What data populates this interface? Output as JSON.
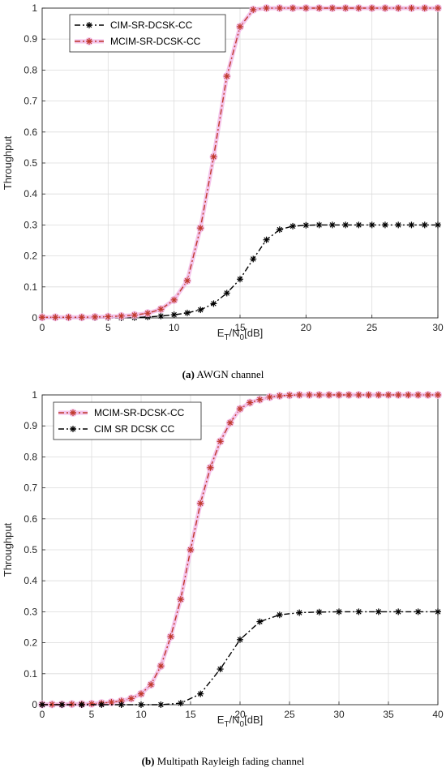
{
  "chart_data": [
    {
      "type": "line",
      "caption_tag": "(a)",
      "caption_text": " AWGN channel",
      "xlabel_base": "E",
      "xlabel_sub1": "T",
      "xlabel_mid": "/N",
      "xlabel_sub2": "0",
      "xlabel_tail": "[dB]",
      "ylabel": "Throughput",
      "xlim": [
        0,
        30
      ],
      "ylim": [
        0,
        1
      ],
      "xticks": [
        0,
        5,
        10,
        15,
        20,
        25,
        30
      ],
      "yticks": [
        0,
        0.1,
        0.2,
        0.3,
        0.4,
        0.5,
        0.6,
        0.7,
        0.8,
        0.9,
        1
      ],
      "grid": true,
      "legend_position": "top-left",
      "series": [
        {
          "name": "CIM-SR-DCSK-CC",
          "color": "#000000",
          "marker": "asterisk",
          "x": [
            0,
            1,
            2,
            3,
            4,
            5,
            6,
            7,
            8,
            9,
            10,
            11,
            12,
            13,
            14,
            15,
            16,
            17,
            18,
            19,
            20,
            21,
            22,
            23,
            24,
            25,
            26,
            27,
            28,
            29,
            30
          ],
          "y": [
            0,
            0,
            0,
            0,
            0,
            0,
            0,
            0.001,
            0.003,
            0.006,
            0.01,
            0.016,
            0.026,
            0.046,
            0.08,
            0.125,
            0.19,
            0.252,
            0.285,
            0.296,
            0.299,
            0.3,
            0.3,
            0.3,
            0.3,
            0.3,
            0.3,
            0.3,
            0.3,
            0.3,
            0.3
          ]
        },
        {
          "name": "MCIM-SR-DCSK-CC",
          "color": "#c0392b",
          "marker": "asterisk-pink",
          "x": [
            0,
            1,
            2,
            3,
            4,
            5,
            6,
            7,
            8,
            9,
            10,
            11,
            12,
            13,
            14,
            15,
            16,
            17,
            18,
            19,
            20,
            21,
            22,
            23,
            24,
            25,
            26,
            27,
            28,
            29,
            30
          ],
          "y": [
            0.002,
            0.002,
            0.002,
            0.002,
            0.003,
            0.004,
            0.006,
            0.009,
            0.015,
            0.028,
            0.058,
            0.12,
            0.29,
            0.52,
            0.78,
            0.94,
            0.995,
            1,
            1,
            1,
            1,
            1,
            1,
            1,
            1,
            1,
            1,
            1,
            1,
            1,
            1
          ]
        }
      ]
    },
    {
      "type": "line",
      "caption_tag": "(b)",
      "caption_text": " Multipath Rayleigh fading channel",
      "xlabel_base": "E",
      "xlabel_sub1": "T",
      "xlabel_mid": "/N",
      "xlabel_sub2": "0",
      "xlabel_tail": "[dB]",
      "ylabel": "Throughput",
      "xlim": [
        0,
        40
      ],
      "ylim": [
        0,
        1
      ],
      "xticks": [
        0,
        5,
        10,
        15,
        20,
        25,
        30,
        35,
        40
      ],
      "yticks": [
        0,
        0.1,
        0.2,
        0.3,
        0.4,
        0.5,
        0.6,
        0.7,
        0.8,
        0.9,
        1
      ],
      "grid": true,
      "legend_position": "top-left",
      "series": [
        {
          "name": "MCIM-SR-DCSK-CC",
          "color": "#c0392b",
          "marker": "asterisk-pink",
          "x": [
            0,
            1,
            2,
            3,
            4,
            5,
            6,
            7,
            8,
            9,
            10,
            11,
            12,
            13,
            14,
            15,
            16,
            17,
            18,
            19,
            20,
            21,
            22,
            23,
            24,
            25,
            26,
            27,
            28,
            29,
            30,
            31,
            32,
            33,
            34,
            35,
            36,
            37,
            38,
            39,
            40
          ],
          "y": [
            0.001,
            0.001,
            0.001,
            0.002,
            0.002,
            0.003,
            0.005,
            0.008,
            0.012,
            0.02,
            0.035,
            0.065,
            0.125,
            0.22,
            0.34,
            0.5,
            0.65,
            0.765,
            0.85,
            0.91,
            0.955,
            0.975,
            0.985,
            0.993,
            0.997,
            0.999,
            1,
            1,
            1,
            1,
            1,
            1,
            1,
            1,
            1,
            1,
            1,
            1,
            1,
            1,
            1
          ]
        },
        {
          "name": "CIM SR DCSK CC",
          "color": "#000000",
          "marker": "asterisk",
          "x": [
            0,
            2,
            4,
            6,
            8,
            10,
            12,
            14,
            16,
            18,
            20,
            22,
            24,
            26,
            28,
            30,
            32,
            34,
            36,
            38,
            40
          ],
          "y": [
            0,
            0,
            0,
            0,
            0,
            0,
            0,
            0.005,
            0.035,
            0.115,
            0.21,
            0.268,
            0.29,
            0.297,
            0.299,
            0.3,
            0.3,
            0.3,
            0.3,
            0.3,
            0.3
          ]
        }
      ]
    }
  ]
}
